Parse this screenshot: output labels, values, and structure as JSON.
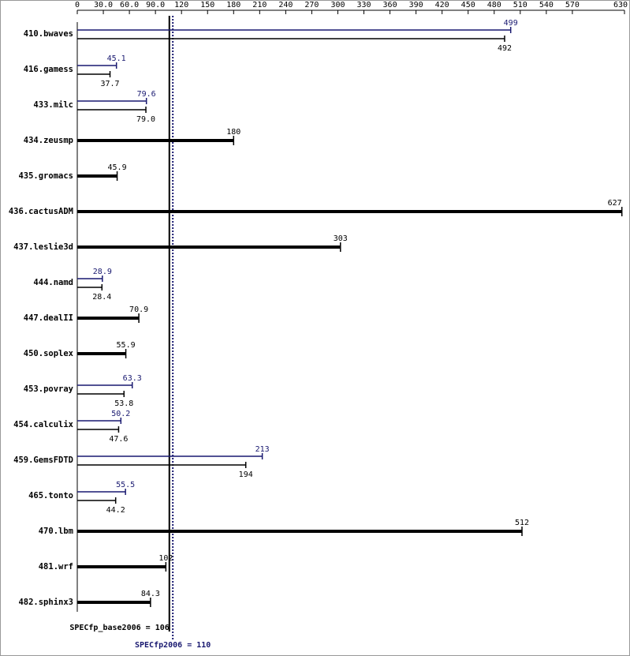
{
  "chart_data": {
    "type": "spec-bar",
    "categories": [
      "410.bwaves",
      "416.gamess",
      "433.milc",
      "434.zeusmp",
      "435.gromacs",
      "436.cactusADM",
      "437.leslie3d",
      "444.namd",
      "447.dealII",
      "450.soplex",
      "453.povray",
      "454.calculix",
      "459.GemsFDTD",
      "465.tonto",
      "470.lbm",
      "481.wrf",
      "482.sphinx3"
    ],
    "series": [
      {
        "color": "#000000",
        "values": [
          492,
          37.7,
          79,
          180,
          45.9,
          627,
          303,
          28.4,
          70.9,
          55.9,
          53.8,
          47.6,
          194,
          44.2,
          512,
          102,
          84.3
        ],
        "value_labels": [
          "492",
          "37.7",
          "79.0",
          "180",
          "45.9",
          "627",
          "303",
          "28.4",
          "70.9",
          "55.9",
          "53.8",
          "47.6",
          "194",
          "44.2",
          "512",
          "102",
          "84.3"
        ]
      },
      {
        "color": "#191970",
        "values": [
          499,
          45.1,
          79.6,
          null,
          null,
          null,
          null,
          28.9,
          null,
          null,
          63.3,
          50.2,
          213,
          55.5,
          null,
          null,
          null
        ]
      }
    ],
    "xlim": [
      0,
      630
    ],
    "xticks": [
      0,
      {
        "value": 30,
        "label": "30.0"
      },
      {
        "value": 60,
        "label": "60.0"
      },
      {
        "value": 90,
        "label": "90.0"
      },
      120,
      150,
      180,
      210,
      240,
      270,
      300,
      330,
      360,
      390,
      420,
      450,
      480,
      510,
      540,
      570,
      630
    ],
    "reference_lines": [
      {
        "label": "SPECfp_base2006 = 106",
        "value": 106,
        "color": "#000000"
      },
      {
        "label": "SPECfp2006 = 110",
        "value": 110,
        "color": "#191970"
      }
    ]
  }
}
